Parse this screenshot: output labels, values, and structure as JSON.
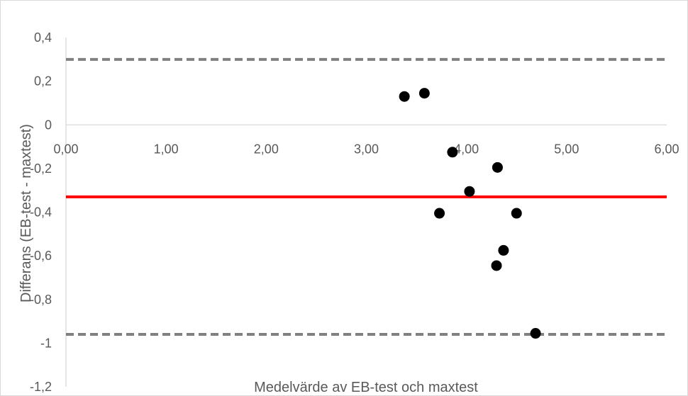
{
  "chart_data": {
    "type": "scatter",
    "title": "",
    "xlabel": "Medelvärde av EB-test och maxtest",
    "ylabel": "Differans (EB-test - maxtest)",
    "xlim": [
      0,
      6
    ],
    "ylim": [
      -1.2,
      0.4
    ],
    "x_ticks": [
      "0,00",
      "1,00",
      "2,00",
      "3,00",
      "4,00",
      "5,00",
      "6,00"
    ],
    "y_ticks": [
      "0,4",
      "0,2",
      "0",
      "-0,2",
      "-0,4",
      "-0,6",
      "-0,8",
      "-1",
      "-1,2"
    ],
    "points": [
      {
        "x": 3.38,
        "y": 0.13
      },
      {
        "x": 3.58,
        "y": 0.145
      },
      {
        "x": 3.73,
        "y": -0.405
      },
      {
        "x": 3.86,
        "y": -0.125
      },
      {
        "x": 4.03,
        "y": -0.305
      },
      {
        "x": 4.3,
        "y": -0.645
      },
      {
        "x": 4.31,
        "y": -0.195
      },
      {
        "x": 4.37,
        "y": -0.575
      },
      {
        "x": 4.5,
        "y": -0.405
      },
      {
        "x": 4.69,
        "y": -0.955
      }
    ],
    "reference_lines": [
      {
        "role": "upper-limit",
        "y": 0.3,
        "style": "dashed",
        "color": "#808080"
      },
      {
        "role": "mean-difference",
        "y": -0.33,
        "style": "solid",
        "color": "#ff0000"
      },
      {
        "role": "lower-limit",
        "y": -0.96,
        "style": "dashed",
        "color": "#808080"
      }
    ],
    "marker_color": "#000000",
    "axis_color": "#d9d9d9",
    "grid": false,
    "legend": "none"
  }
}
